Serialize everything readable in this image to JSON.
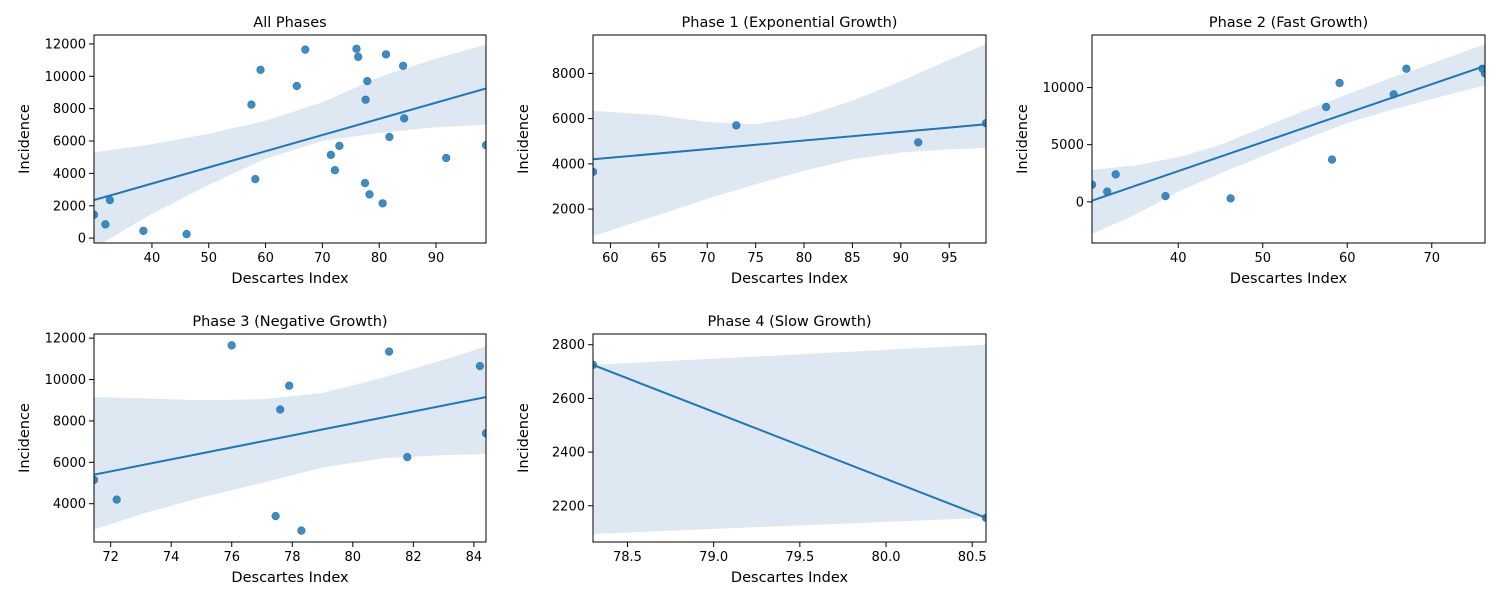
{
  "figure": {
    "background": "#ffffff"
  },
  "style": {
    "point_color": "#1f77b4",
    "line_color": "#1f77b4",
    "band_color": "#dde8f3"
  },
  "chart_data": [
    {
      "id": "all-phases",
      "type": "scatter",
      "title": "All Phases",
      "xlabel": "Descartes Index",
      "ylabel": "Incidence",
      "xlim": [
        29.8,
        98.8
      ],
      "ylim": [
        -300,
        12550
      ],
      "xticks": [
        40,
        50,
        60,
        70,
        80,
        90
      ],
      "yticks": [
        0,
        2000,
        4000,
        6000,
        8000,
        10000,
        12000
      ],
      "grid": false,
      "points": [
        {
          "x": 29.8,
          "y": 1450
        },
        {
          "x": 31.8,
          "y": 850
        },
        {
          "x": 32.6,
          "y": 2350
        },
        {
          "x": 38.5,
          "y": 450
        },
        {
          "x": 46.1,
          "y": 250
        },
        {
          "x": 57.5,
          "y": 8250
        },
        {
          "x": 58.2,
          "y": 3650
        },
        {
          "x": 59.1,
          "y": 10400
        },
        {
          "x": 65.5,
          "y": 9400
        },
        {
          "x": 67.0,
          "y": 11650
        },
        {
          "x": 71.5,
          "y": 5150
        },
        {
          "x": 72.2,
          "y": 4200
        },
        {
          "x": 73.0,
          "y": 5700
        },
        {
          "x": 76.0,
          "y": 11700
        },
        {
          "x": 76.3,
          "y": 11200
        },
        {
          "x": 77.5,
          "y": 3400
        },
        {
          "x": 77.6,
          "y": 8550
        },
        {
          "x": 77.9,
          "y": 9700
        },
        {
          "x": 78.3,
          "y": 2700
        },
        {
          "x": 80.6,
          "y": 2150
        },
        {
          "x": 81.2,
          "y": 11350
        },
        {
          "x": 81.8,
          "y": 6250
        },
        {
          "x": 84.2,
          "y": 10650
        },
        {
          "x": 84.4,
          "y": 7400
        },
        {
          "x": 91.8,
          "y": 4950
        },
        {
          "x": 98.8,
          "y": 5750
        }
      ],
      "regression": {
        "x": [
          29.8,
          98.8
        ],
        "y": [
          2350,
          9250
        ]
      },
      "ci_band": {
        "x": [
          29.8,
          40,
          50,
          60,
          70,
          80,
          90,
          98.8
        ],
        "lower": [
          -600,
          1500,
          3300,
          4900,
          6000,
          6500,
          6850,
          7000
        ],
        "upper": [
          5300,
          5800,
          6450,
          7250,
          8400,
          9950,
          11100,
          11950
        ]
      }
    },
    {
      "id": "phase-1",
      "type": "scatter",
      "title": "Phase 1 (Exponential Growth)",
      "xlabel": "Descartes Index",
      "ylabel": "Incidence",
      "xlim": [
        58.2,
        98.8
      ],
      "ylim": [
        500,
        9700
      ],
      "xticks": [
        60,
        65,
        70,
        75,
        80,
        85,
        90,
        95
      ],
      "yticks": [
        2000,
        4000,
        6000,
        8000
      ],
      "grid": false,
      "points": [
        {
          "x": 58.2,
          "y": 3650
        },
        {
          "x": 73.0,
          "y": 5700
        },
        {
          "x": 91.8,
          "y": 4950
        },
        {
          "x": 98.8,
          "y": 5800
        }
      ],
      "regression": {
        "x": [
          58.2,
          98.8
        ],
        "y": [
          4200,
          5750
        ]
      },
      "ci_band": {
        "x": [
          58.2,
          65,
          70,
          75,
          80,
          85,
          90,
          95,
          98.8
        ],
        "lower": [
          800,
          1750,
          2450,
          3100,
          3700,
          4200,
          4500,
          4650,
          4700
        ],
        "upper": [
          6350,
          6150,
          5850,
          5750,
          6100,
          6800,
          7650,
          8600,
          9300
        ]
      }
    },
    {
      "id": "phase-2",
      "type": "scatter",
      "title": "Phase 2 (Fast Growth)",
      "xlabel": "Descartes Index",
      "ylabel": "Incidence",
      "xlim": [
        29.8,
        76.3
      ],
      "ylim": [
        -3600,
        14600
      ],
      "xticks": [
        40,
        50,
        60,
        70
      ],
      "yticks": [
        0,
        5000,
        10000
      ],
      "grid": false,
      "points": [
        {
          "x": 29.8,
          "y": 1500
        },
        {
          "x": 31.6,
          "y": 900
        },
        {
          "x": 32.6,
          "y": 2400
        },
        {
          "x": 38.5,
          "y": 500
        },
        {
          "x": 46.2,
          "y": 300
        },
        {
          "x": 57.5,
          "y": 8300
        },
        {
          "x": 58.2,
          "y": 3700
        },
        {
          "x": 59.1,
          "y": 10400
        },
        {
          "x": 65.5,
          "y": 9400
        },
        {
          "x": 67.0,
          "y": 11650
        },
        {
          "x": 76.0,
          "y": 11650
        },
        {
          "x": 76.3,
          "y": 11250
        }
      ],
      "regression": {
        "x": [
          29.8,
          76.3
        ],
        "y": [
          100,
          11900
        ]
      },
      "ci_band": {
        "x": [
          29.8,
          35,
          40,
          45,
          50,
          55,
          60,
          65,
          70,
          76.3
        ],
        "lower": [
          -2800,
          -1100,
          900,
          2500,
          4000,
          5500,
          6900,
          8000,
          9000,
          10200
        ],
        "upper": [
          2800,
          3200,
          3900,
          5000,
          6500,
          8000,
          9400,
          10800,
          12100,
          13800
        ]
      }
    },
    {
      "id": "phase-3",
      "type": "scatter",
      "title": "Phase 3 (Negative Growth)",
      "xlabel": "Descartes Index",
      "ylabel": "Incidence",
      "xlim": [
        71.45,
        84.4
      ],
      "ylim": [
        2150,
        12200
      ],
      "xticks": [
        72,
        74,
        76,
        78,
        80,
        82,
        84
      ],
      "yticks": [
        4000,
        6000,
        8000,
        10000,
        12000
      ],
      "grid": false,
      "points": [
        {
          "x": 71.45,
          "y": 5150
        },
        {
          "x": 72.2,
          "y": 4200
        },
        {
          "x": 76.0,
          "y": 11650
        },
        {
          "x": 77.45,
          "y": 3400
        },
        {
          "x": 77.6,
          "y": 8550
        },
        {
          "x": 77.9,
          "y": 9700
        },
        {
          "x": 78.3,
          "y": 2700
        },
        {
          "x": 81.2,
          "y": 11350
        },
        {
          "x": 81.8,
          "y": 6250
        },
        {
          "x": 84.2,
          "y": 10650
        },
        {
          "x": 84.4,
          "y": 7400
        }
      ],
      "regression": {
        "x": [
          71.45,
          84.4
        ],
        "y": [
          5400,
          9150
        ]
      },
      "ci_band": {
        "x": [
          71.45,
          73,
          75,
          77,
          79,
          81,
          83,
          84.4
        ],
        "lower": [
          2750,
          3500,
          4300,
          5000,
          5750,
          6200,
          6350,
          6400
        ],
        "upper": [
          9150,
          9100,
          9000,
          9050,
          9350,
          10100,
          10950,
          11600
        ]
      }
    },
    {
      "id": "phase-4",
      "type": "scatter",
      "title": "Phase 4 (Slow Growth)",
      "xlabel": "Descartes Index",
      "ylabel": "Incidence",
      "xlim": [
        78.3,
        80.58
      ],
      "ylim": [
        2065,
        2840
      ],
      "xticks": [
        78.5,
        79.0,
        79.5,
        80.0,
        80.5
      ],
      "xtick_labels": [
        "78.5",
        "79.0",
        "79.5",
        "80.0",
        "80.5"
      ],
      "yticks": [
        2200,
        2400,
        2600,
        2800
      ],
      "grid": false,
      "points": [
        {
          "x": 78.3,
          "y": 2725
        },
        {
          "x": 80.58,
          "y": 2155
        }
      ],
      "regression": {
        "x": [
          78.3,
          80.58
        ],
        "y": [
          2725,
          2155
        ]
      },
      "ci_band": {
        "x": [
          78.3,
          80.58
        ],
        "lower": [
          2095,
          2155
        ],
        "upper": [
          2725,
          2800
        ]
      }
    }
  ]
}
